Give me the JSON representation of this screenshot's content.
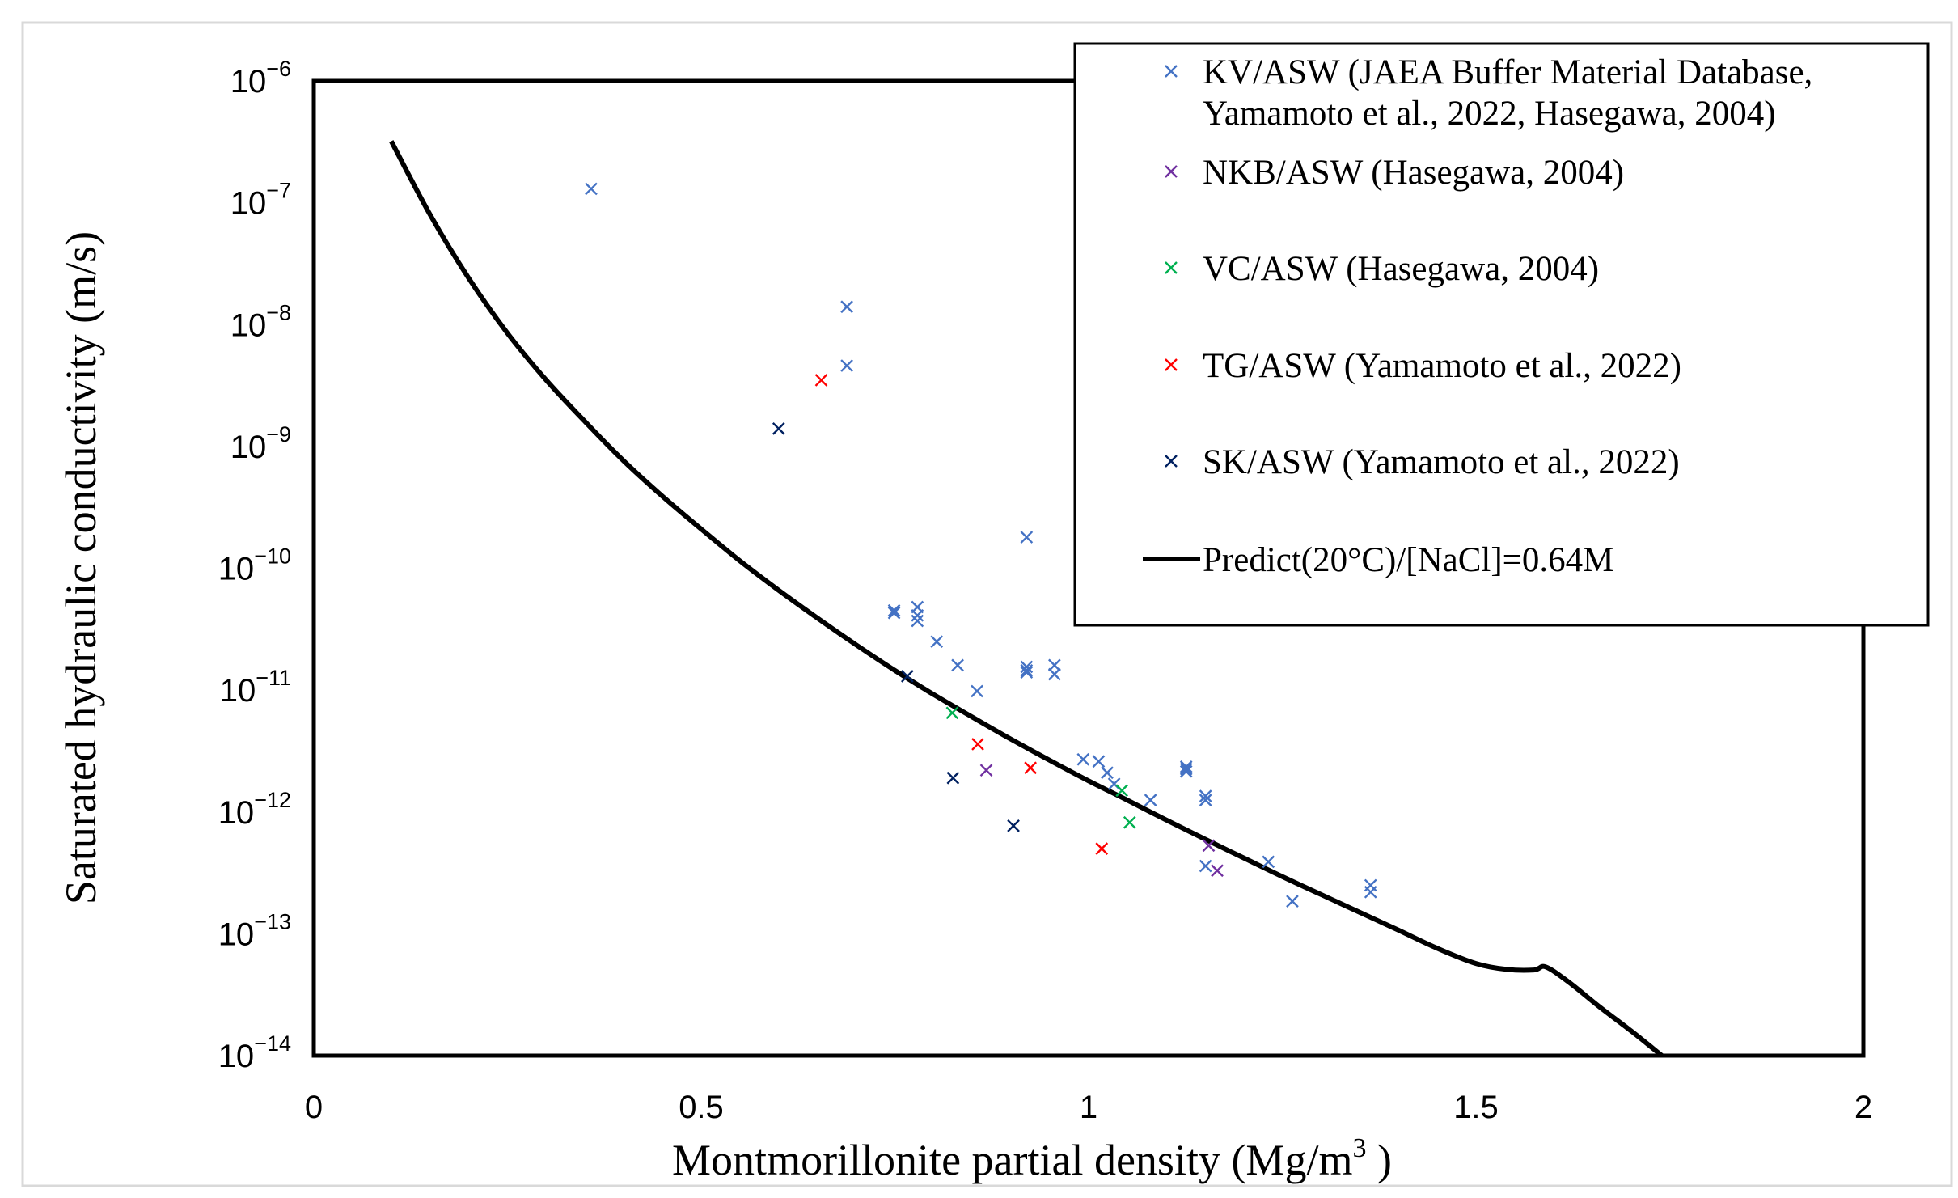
{
  "chart_data": {
    "type": "scatter",
    "title": "",
    "xlabel": "Montmorillonite partial density (Mg/m",
    "xlabel_sup": "3",
    "xlabel_end": " )",
    "ylabel": "Saturated hydraulic conductivity (m/s)",
    "xlim": [
      0,
      2
    ],
    "ylim_exponent": [
      -14,
      -6
    ],
    "yscale": "log",
    "x_ticks": [
      {
        "value": 0,
        "label": "0"
      },
      {
        "value": 0.5,
        "label": "0.5"
      },
      {
        "value": 1,
        "label": "1"
      },
      {
        "value": 1.5,
        "label": "1.5"
      },
      {
        "value": 2,
        "label": "2"
      }
    ],
    "y_ticks": [
      {
        "exp": -6,
        "base": "10",
        "sup": "−6"
      },
      {
        "exp": -7,
        "base": "10",
        "sup": "−7"
      },
      {
        "exp": -8,
        "base": "10",
        "sup": "−8"
      },
      {
        "exp": -9,
        "base": "10",
        "sup": "−9"
      },
      {
        "exp": -10,
        "base": "10",
        "sup": "−10"
      },
      {
        "exp": -11,
        "base": "10",
        "sup": "−11"
      },
      {
        "exp": -12,
        "base": "10",
        "sup": "−12"
      },
      {
        "exp": -13,
        "base": "10",
        "sup": "−13"
      },
      {
        "exp": -14,
        "base": "10",
        "sup": "−14"
      }
    ],
    "legend_position": "top-right",
    "grid": false,
    "series": [
      {
        "name": "KV/ASW (JAEA Buffer Material Database,",
        "name_line2": "Yamamoto et al., 2022, Hasegawa, 2004)",
        "kind": "points",
        "color": "#4472C4",
        "points": [
          [
            0.358,
            1.3e-07
          ],
          [
            0.688,
            1.4e-08
          ],
          [
            0.688,
            4.6e-09
          ],
          [
            0.749,
            4.5e-11
          ],
          [
            0.749,
            4.3e-11
          ],
          [
            0.779,
            4.8e-11
          ],
          [
            0.779,
            4.1e-11
          ],
          [
            0.779,
            3.7e-11
          ],
          [
            0.804,
            2.5e-11
          ],
          [
            0.831,
            1.6e-11
          ],
          [
            0.856,
            9.8e-12
          ],
          [
            0.92,
            1.8e-10
          ],
          [
            0.92,
            1.55e-11
          ],
          [
            0.92,
            1.45e-11
          ],
          [
            0.92,
            1.4e-11
          ],
          [
            0.956,
            1.6e-11
          ],
          [
            0.956,
            1.35e-11
          ],
          [
            0.993,
            2.7e-12
          ],
          [
            1.013,
            2.6e-12
          ],
          [
            1.024,
            2.1e-12
          ],
          [
            1.033,
            1.7e-12
          ],
          [
            1.08,
            1.25e-12
          ],
          [
            1.126,
            2.35e-12
          ],
          [
            1.126,
            2.25e-12
          ],
          [
            1.126,
            2.15e-12
          ],
          [
            1.151,
            1.35e-12
          ],
          [
            1.151,
            1.25e-12
          ],
          [
            1.151,
            3.6e-13
          ],
          [
            1.232,
            3.9e-13
          ],
          [
            1.263,
            1.85e-13
          ],
          [
            1.364,
            2.5e-13
          ],
          [
            1.364,
            2.2e-13
          ]
        ]
      },
      {
        "name": "NKB/ASW (Hasegawa, 2004)",
        "kind": "points",
        "color": "#7030A0",
        "points": [
          [
            0.868,
            2.2e-12
          ],
          [
            1.155,
            5.3e-13
          ],
          [
            1.166,
            3.3e-13
          ]
        ]
      },
      {
        "name": "VC/ASW (Hasegawa, 2004)",
        "kind": "points",
        "color": "#00B050",
        "points": [
          [
            0.824,
            6.5e-12
          ],
          [
            1.043,
            1.5e-12
          ],
          [
            1.053,
            8.2e-13
          ]
        ]
      },
      {
        "name": "TG/ASW (Yamamoto et al., 2022)",
        "kind": "points",
        "color": "#FF0000",
        "points": [
          [
            0.655,
            3.5e-09
          ],
          [
            0.857,
            3.6e-12
          ],
          [
            0.925,
            2.3e-12
          ],
          [
            1.017,
            5e-13
          ]
        ]
      },
      {
        "name": "SK/ASW (Yamamoto et al., 2022)",
        "kind": "points",
        "color": "#002060",
        "points": [
          [
            0.6,
            1.4e-09
          ],
          [
            0.766,
            1.3e-11
          ],
          [
            0.825,
            1.9e-12
          ],
          [
            0.903,
            7.7e-13
          ]
        ]
      },
      {
        "name": "Predict(20°C)/[NaCl]=0.64M",
        "kind": "line",
        "color": "#000000",
        "points": [
          [
            0.1,
            3.2e-07
          ],
          [
            0.15,
            8e-08
          ],
          [
            0.2,
            2.4e-08
          ],
          [
            0.25,
            8.5e-09
          ],
          [
            0.3,
            3.5e-09
          ],
          [
            0.35,
            1.6e-09
          ],
          [
            0.4,
            7.6e-10
          ],
          [
            0.45,
            3.9e-10
          ],
          [
            0.5,
            2.1e-10
          ],
          [
            0.55,
            1.15e-10
          ],
          [
            0.6,
            6.6e-11
          ],
          [
            0.65,
            3.9e-11
          ],
          [
            0.7,
            2.35e-11
          ],
          [
            0.75,
            1.45e-11
          ],
          [
            0.8,
            9.2e-12
          ],
          [
            0.85,
            6e-12
          ],
          [
            0.9,
            3.95e-12
          ],
          [
            0.95,
            2.65e-12
          ],
          [
            1.0,
            1.8e-12
          ],
          [
            1.05,
            1.25e-12
          ],
          [
            1.1,
            8.6e-13
          ],
          [
            1.15,
            6e-13
          ],
          [
            1.2,
            4.2e-13
          ],
          [
            1.25,
            2.95e-13
          ],
          [
            1.3,
            2.1e-13
          ],
          [
            1.35,
            1.5e-13
          ],
          [
            1.4,
            1.07e-13
          ],
          [
            1.45,
            7.6e-14
          ],
          [
            1.5,
            5.7e-14
          ],
          [
            1.54,
            5.1e-14
          ],
          [
            1.575,
            5.05e-14
          ],
          [
            1.59,
            5.35e-14
          ],
          [
            1.62,
            4e-14
          ],
          [
            1.66,
            2.5e-14
          ],
          [
            1.7,
            1.6e-14
          ],
          [
            1.74,
            1e-14
          ]
        ]
      }
    ]
  }
}
